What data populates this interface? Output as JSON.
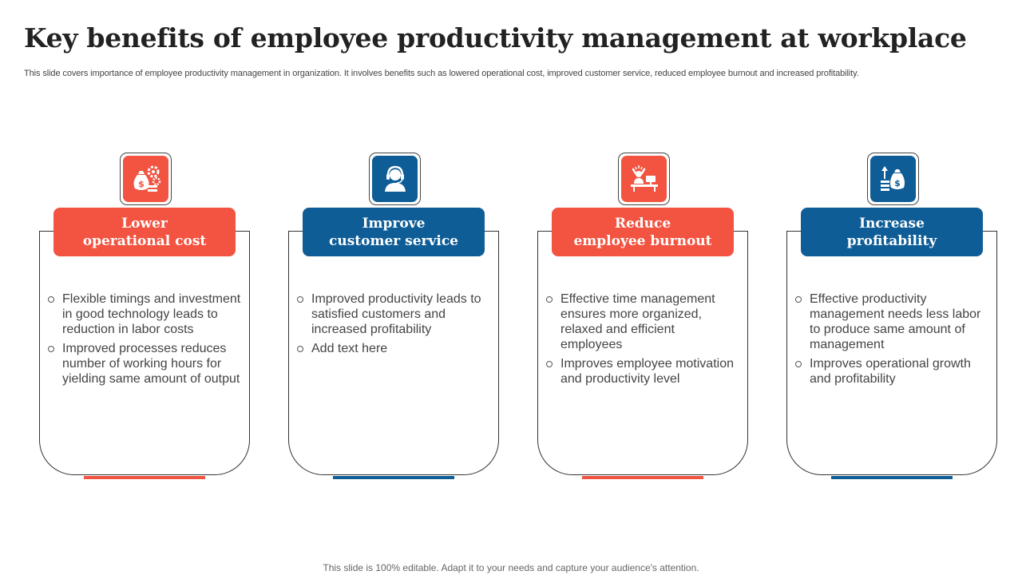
{
  "slide": {
    "title": "Key benefits of employee productivity management at workplace",
    "subtitle": "This slide covers importance of employee productivity management in organization. It involves benefits such as lowered operational cost, improved customer service, reduced employee burnout and increased profitability.",
    "footer": "This slide is 100% editable. Adapt it to your needs and capture your audience's attention."
  },
  "colors": {
    "red": "#f25441",
    "blue": "#0e5d96",
    "card_border": "#333333"
  },
  "cards": [
    {
      "label_line1": "Lower",
      "label_line2": "operational cost",
      "icon": "money-bag-gears-icon",
      "color": "red",
      "bullets": [
        "Flexible timings and investment in good technology  leads to reduction in labor costs",
        "Improved processes reduces number of working hours for yielding same amount of output"
      ]
    },
    {
      "label_line1": "Improve",
      "label_line2": "customer service",
      "icon": "customer-support-headset-icon",
      "color": "blue",
      "bullets": [
        "Improved productivity leads to satisfied customers and increased profitability",
        "Add text here"
      ]
    },
    {
      "label_line1": "Reduce",
      "label_line2": "employee burnout",
      "icon": "stressed-employee-desk-icon",
      "color": "red",
      "bullets": [
        "Effective time management ensures more organized, relaxed and efficient employees",
        "Improves employee motivation and productivity  level"
      ]
    },
    {
      "label_line1": "Increase",
      "label_line2": "profitability",
      "icon": "profit-growth-money-bag-icon",
      "color": "blue",
      "bullets": [
        "Effective productivity management needs less labor to produce same amount of management",
        "Improves  operational growth and profitability"
      ]
    }
  ]
}
